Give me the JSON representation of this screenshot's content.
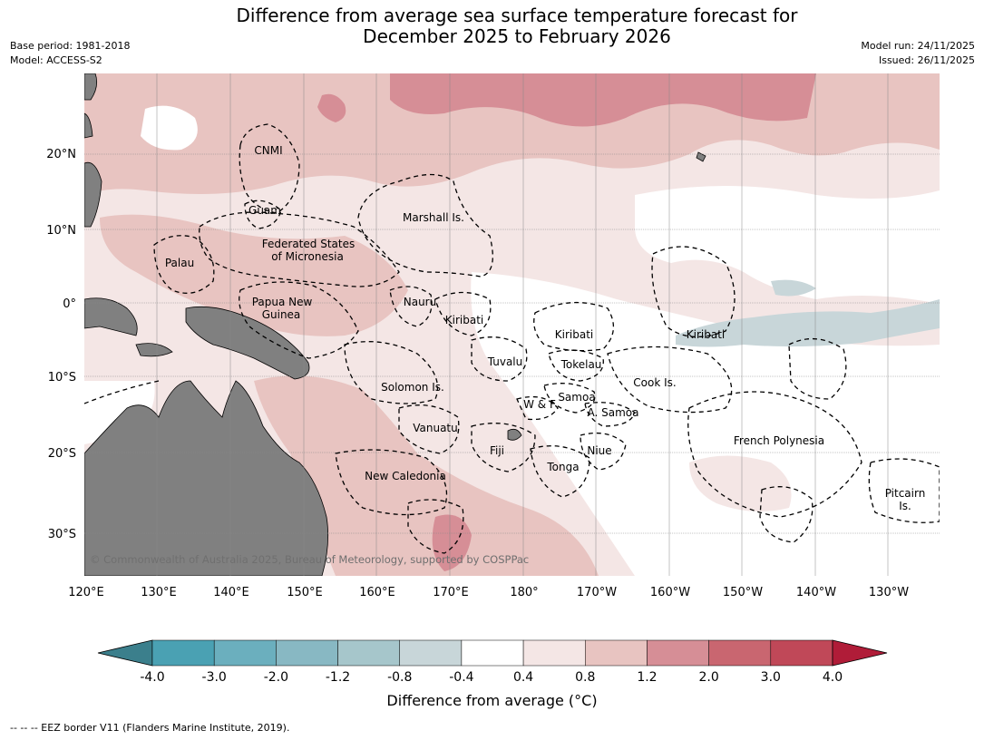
{
  "header": {
    "title_line1": "Difference from average sea surface temperature forecast for",
    "title_line2": "December 2025 to February 2026",
    "base_period": "Base period: 1981-2018",
    "model": "Model: ACCESS-S2",
    "model_run": "Model run: 24/11/2025",
    "issued": "Issued: 26/11/2025"
  },
  "map": {
    "lat_labels": [
      "20°N",
      "10°N",
      "0°",
      "10°S",
      "20°S",
      "30°S"
    ],
    "lon_labels": [
      "120°E",
      "130°E",
      "140°E",
      "150°E",
      "160°E",
      "170°E",
      "180°",
      "170°W",
      "160°W",
      "150°W",
      "140°W",
      "130°W"
    ],
    "copyright": "© Commonwealth of Australia 2025, Bureau of Meteorology, supported by COSPPac",
    "regions": [
      {
        "name": "cnmi",
        "label": "CNMI"
      },
      {
        "name": "guam",
        "label": "Guam"
      },
      {
        "name": "marshall",
        "label": "Marshall Is."
      },
      {
        "name": "fsm1",
        "label": "Federated States"
      },
      {
        "name": "fsm2",
        "label": "of Micronesia"
      },
      {
        "name": "palau",
        "label": "Palau"
      },
      {
        "name": "png1",
        "label": "Papua New"
      },
      {
        "name": "png2",
        "label": "Guinea"
      },
      {
        "name": "nauru",
        "label": "Nauru"
      },
      {
        "name": "kiribati-w",
        "label": "Kiribati"
      },
      {
        "name": "kiribati-c",
        "label": "Kiribati"
      },
      {
        "name": "kiribati-e",
        "label": "Kiribati"
      },
      {
        "name": "tuvalu",
        "label": "Tuvalu"
      },
      {
        "name": "tokelau",
        "label": "Tokelau"
      },
      {
        "name": "cook",
        "label": "Cook Is."
      },
      {
        "name": "solomon",
        "label": "Solomon Is."
      },
      {
        "name": "samoa",
        "label": "Samoa"
      },
      {
        "name": "wf",
        "label": "W & F"
      },
      {
        "name": "asamoa",
        "label": "A. Samoa"
      },
      {
        "name": "vanuatu",
        "label": "Vanuatu"
      },
      {
        "name": "fiji",
        "label": "Fiji"
      },
      {
        "name": "niue",
        "label": "Niue"
      },
      {
        "name": "frenchpoly",
        "label": "French Polynesia"
      },
      {
        "name": "tonga",
        "label": "Tonga"
      },
      {
        "name": "newcal",
        "label": "New Caledonia"
      },
      {
        "name": "pitcairn1",
        "label": "Pitcairn"
      },
      {
        "name": "pitcairn2",
        "label": "Is."
      }
    ]
  },
  "colorbar": {
    "ticks": [
      "-4.0",
      "-3.0",
      "-2.0",
      "-1.2",
      "-0.8",
      "-0.4",
      "0.4",
      "0.8",
      "1.2",
      "2.0",
      "3.0",
      "4.0"
    ],
    "colors": [
      "#3b7f8c",
      "#4aa1b3",
      "#6bafbe",
      "#88b8c3",
      "#a6c6cb",
      "#c8d6d9",
      "#ffffff",
      "#f4e6e5",
      "#e8c4c1",
      "#d68e96",
      "#c96670",
      "#c04858",
      "#b01c38"
    ],
    "label": "Difference from average (°C)"
  },
  "footer": {
    "eez": "--  --  -- EEZ border V11 (Flanders Marine Institute, 2019)."
  }
}
